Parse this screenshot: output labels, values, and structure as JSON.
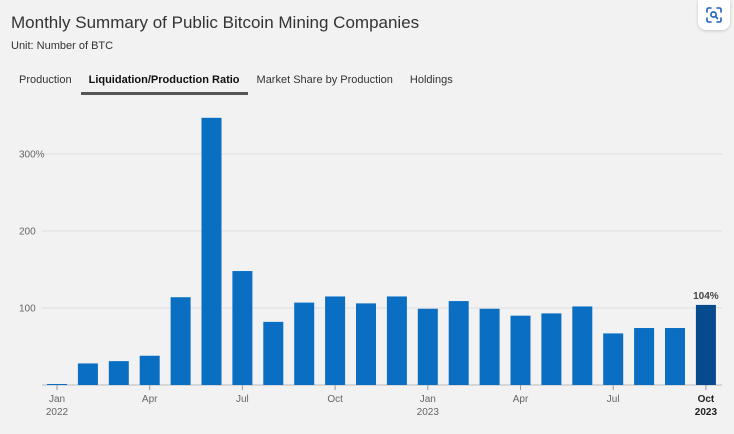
{
  "header": {
    "title": "Monthly Summary of Public Bitcoin Mining Companies",
    "subtitle": "Unit: Number of BTC"
  },
  "tabs": [
    {
      "label": "Production",
      "active": false
    },
    {
      "label": "Liquidation/Production Ratio",
      "active": true
    },
    {
      "label": "Market Share by Production",
      "active": false
    },
    {
      "label": "Holdings",
      "active": false
    }
  ],
  "scan_button": {
    "icon": "scan-search-icon"
  },
  "colors": {
    "bar": "#0a6fc2",
    "bar_highlight": "#054a8c",
    "grid": "#dddddd",
    "accent": "#555555"
  },
  "chart_data": {
    "type": "bar",
    "title": "",
    "xlabel": "",
    "ylabel": "",
    "categories": [
      "Jan 2022",
      "Feb 2022",
      "Mar 2022",
      "Apr 2022",
      "May 2022",
      "Jun 2022",
      "Jul 2022",
      "Aug 2022",
      "Sep 2022",
      "Oct 2022",
      "Nov 2022",
      "Dec 2022",
      "Jan 2023",
      "Feb 2023",
      "Mar 2023",
      "Apr 2023",
      "May 2023",
      "Jun 2023",
      "Jul 2023",
      "Aug 2023",
      "Sep 2023",
      "Oct 2023"
    ],
    "values": [
      1,
      28,
      31,
      38,
      114,
      347,
      148,
      82,
      107,
      115,
      106,
      115,
      99,
      109,
      99,
      90,
      93,
      102,
      67,
      74,
      74,
      104
    ],
    "ylim": [
      0,
      350
    ],
    "yticks": [
      {
        "value": 100,
        "label": "100"
      },
      {
        "value": 200,
        "label": "200"
      },
      {
        "value": 300,
        "label": "300%"
      }
    ],
    "xticks": [
      {
        "index": 0,
        "line1": "Jan",
        "line2": "2022",
        "bold": false
      },
      {
        "index": 3,
        "line1": "Apr",
        "line2": "",
        "bold": false
      },
      {
        "index": 6,
        "line1": "Jul",
        "line2": "",
        "bold": false
      },
      {
        "index": 9,
        "line1": "Oct",
        "line2": "",
        "bold": false
      },
      {
        "index": 12,
        "line1": "Jan",
        "line2": "2023",
        "bold": false
      },
      {
        "index": 15,
        "line1": "Apr",
        "line2": "",
        "bold": false
      },
      {
        "index": 18,
        "line1": "Jul",
        "line2": "",
        "bold": false
      },
      {
        "index": 21,
        "line1": "Oct",
        "line2": "2023",
        "bold": true
      }
    ],
    "highlight_index": 21,
    "data_labels": [
      {
        "index": 21,
        "text": "104%"
      }
    ],
    "grid": true,
    "legend": "none"
  }
}
